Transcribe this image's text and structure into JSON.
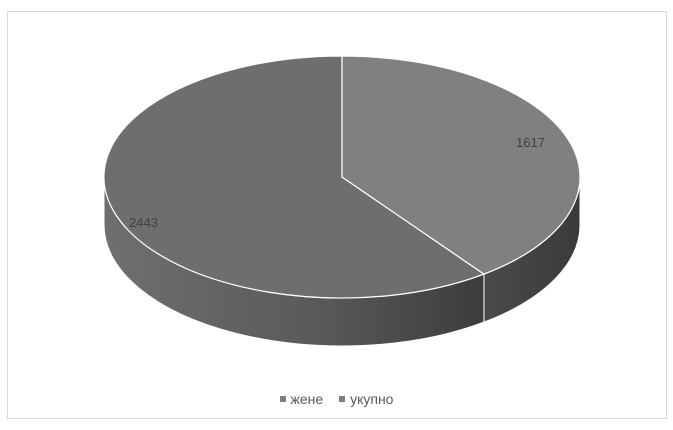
{
  "chart_data": {
    "type": "pie",
    "title": "",
    "categories": [
      "жене",
      "укупно"
    ],
    "values": [
      1617,
      2443
    ],
    "data_labels": [
      "1617",
      "2443"
    ],
    "colors": {
      "жене": "#808080",
      "укупно": "#6e6e6e",
      "legend_swatch": "#7f7f7f",
      "outline": "#ffffff"
    },
    "three_d": true,
    "legend_position": "bottom"
  }
}
